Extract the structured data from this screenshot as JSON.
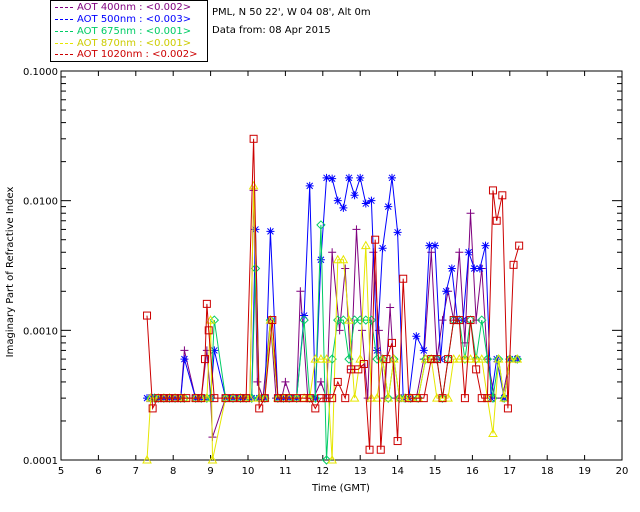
{
  "legend": [
    {
      "label": "AOT  400nm : <0.002>",
      "color": "#7f007f"
    },
    {
      "label": "AOT  500nm : <0.003>",
      "color": "#0000ff"
    },
    {
      "label": "AOT  675nm : <0.001>",
      "color": "#00cc66"
    },
    {
      "label": "AOT  870nm : <0.001>",
      "color": "#e6e600"
    },
    {
      "label": "AOT 1020nm : <0.002>",
      "color": "#cc0000"
    }
  ],
  "meta": {
    "site": "PML, N 50 22', W 04 08', Alt 0m",
    "date": "Data from: 08 Apr 2015"
  },
  "chart_data": {
    "type": "line",
    "title": "",
    "xlabel": "Time (GMT)",
    "ylabel": "Imaginary Part of Refractive Index",
    "xlim": [
      5,
      20
    ],
    "ylim": [
      0.0001,
      0.1
    ],
    "yscale": "log",
    "x_ticks": [
      "5",
      "6",
      "7",
      "8",
      "9",
      "10",
      "11",
      "12",
      "13",
      "14",
      "15",
      "16",
      "17",
      "18",
      "19",
      "20"
    ],
    "y_ticks": [
      "0.0001",
      "0.0010",
      "0.0100",
      "0.1000"
    ],
    "series": [
      {
        "name": "AOT  400nm",
        "marker": "plus",
        "x": [
          7.35,
          7.45,
          7.6,
          7.75,
          7.9,
          8.05,
          8.2,
          8.3,
          8.6,
          8.75,
          8.9,
          9.0,
          9.05,
          9.4,
          9.6,
          9.8,
          9.95,
          10.05,
          10.15,
          10.25,
          10.4,
          10.6,
          10.75,
          10.9,
          11.0,
          11.15,
          11.3,
          11.4,
          11.6,
          11.75,
          11.95,
          12.1,
          12.25,
          12.45,
          12.6,
          12.75,
          12.9,
          13.05,
          13.2,
          13.35,
          13.5,
          13.65,
          13.8,
          13.95,
          14.1,
          14.3,
          14.5,
          14.7,
          14.9,
          15.05,
          15.2,
          15.35,
          15.5,
          15.65,
          15.8,
          15.95,
          16.1,
          16.25,
          16.4,
          16.6,
          16.8,
          17.0,
          17.15
        ],
        "values": [
          0.0003,
          0.0003,
          0.0003,
          0.0003,
          0.0003,
          0.0003,
          0.0003,
          0.0007,
          0.0003,
          0.0003,
          0.0007,
          0.0003,
          0.00015,
          0.0003,
          0.0003,
          0.0003,
          0.0003,
          0.0003,
          0.012,
          0.0004,
          0.0003,
          0.0012,
          0.0003,
          0.0003,
          0.0004,
          0.0003,
          0.0003,
          0.002,
          0.0003,
          0.0003,
          0.0004,
          0.0003,
          0.004,
          0.001,
          0.003,
          0.0005,
          0.006,
          0.001,
          0.0003,
          0.004,
          0.001,
          0.0003,
          0.0015,
          0.0003,
          0.0003,
          0.0003,
          0.0003,
          0.0006,
          0.004,
          0.0006,
          0.0012,
          0.002,
          0.0012,
          0.004,
          0.0008,
          0.008,
          0.0012,
          0.003,
          0.0006,
          0.0003,
          0.0003,
          0.0006,
          0.0006
        ]
      },
      {
        "name": "AOT  500nm",
        "marker": "star",
        "x": [
          7.3,
          7.45,
          7.6,
          7.75,
          7.9,
          8.05,
          8.2,
          8.3,
          8.6,
          8.75,
          8.9,
          9.0,
          9.1,
          9.4,
          9.6,
          9.8,
          9.95,
          10.1,
          10.2,
          10.3,
          10.45,
          10.6,
          10.8,
          10.95,
          11.1,
          11.3,
          11.5,
          11.65,
          11.8,
          11.95,
          12.1,
          12.25,
          12.4,
          12.55,
          12.7,
          12.85,
          13.0,
          13.15,
          13.3,
          13.45,
          13.6,
          13.75,
          13.85,
          14.0,
          14.15,
          14.3,
          14.5,
          14.7,
          14.85,
          15.0,
          15.15,
          15.3,
          15.45,
          15.6,
          15.75,
          15.9,
          16.05,
          16.2,
          16.35,
          16.5,
          16.65,
          16.85,
          17.0,
          17.2
        ],
        "values": [
          0.0003,
          0.0003,
          0.0003,
          0.0003,
          0.0003,
          0.0003,
          0.0003,
          0.0006,
          0.0003,
          0.0003,
          0.0003,
          0.0003,
          0.0007,
          0.0003,
          0.0003,
          0.0003,
          0.0003,
          0.0003,
          0.006,
          0.0003,
          0.0003,
          0.0058,
          0.0003,
          0.0003,
          0.0003,
          0.0003,
          0.0013,
          0.013,
          0.0003,
          0.0035,
          0.015,
          0.0148,
          0.01,
          0.0088,
          0.015,
          0.011,
          0.015,
          0.0095,
          0.01,
          0.0007,
          0.0043,
          0.009,
          0.015,
          0.0057,
          0.0003,
          0.0003,
          0.0009,
          0.0007,
          0.0045,
          0.0045,
          0.0006,
          0.002,
          0.003,
          0.0012,
          0.0012,
          0.004,
          0.003,
          0.003,
          0.0045,
          0.0003,
          0.0006,
          0.0003,
          0.0006,
          0.0006
        ]
      },
      {
        "name": "AOT  675nm",
        "marker": "diamond",
        "x": [
          7.4,
          7.5,
          7.6,
          7.75,
          7.9,
          8.05,
          8.2,
          8.3,
          8.6,
          8.75,
          8.9,
          9.0,
          9.1,
          9.4,
          9.6,
          9.8,
          9.95,
          10.1,
          10.2,
          10.3,
          10.45,
          10.6,
          10.8,
          10.95,
          11.1,
          11.3,
          11.5,
          11.65,
          11.8,
          11.95,
          12.1,
          12.25,
          12.4,
          12.55,
          12.7,
          12.85,
          13.0,
          13.15,
          13.3,
          13.45,
          13.6,
          13.75,
          13.9,
          14.05,
          14.2,
          14.35,
          14.55,
          14.75,
          14.9,
          15.05,
          15.2,
          15.35,
          15.5,
          15.65,
          15.8,
          15.95,
          16.1,
          16.25,
          16.4,
          16.55,
          16.7,
          16.85,
          17.0,
          17.2
        ],
        "values": [
          0.0003,
          0.0003,
          0.0003,
          0.0003,
          0.0003,
          0.0003,
          0.0003,
          0.0003,
          0.0003,
          0.0003,
          0.0003,
          0.0003,
          0.0012,
          0.0003,
          0.0003,
          0.0003,
          0.0003,
          0.0003,
          0.003,
          0.0003,
          0.0003,
          0.0012,
          0.0003,
          0.0003,
          0.0003,
          0.0003,
          0.0012,
          0.0003,
          0.0003,
          0.0065,
          0.0001,
          0.0006,
          0.0012,
          0.0012,
          0.0006,
          0.0012,
          0.0012,
          0.0012,
          0.0012,
          0.0006,
          0.0006,
          0.0003,
          0.0006,
          0.0003,
          0.0003,
          0.0003,
          0.0003,
          0.0006,
          0.0006,
          0.0006,
          0.0003,
          0.0006,
          0.0012,
          0.0012,
          0.0006,
          0.0012,
          0.0006,
          0.0012,
          0.0006,
          0.0003,
          0.0006,
          0.0003,
          0.0006,
          0.0006
        ]
      },
      {
        "name": "AOT  870nm",
        "marker": "triangle",
        "x": [
          7.3,
          7.4,
          7.6,
          7.75,
          7.9,
          8.05,
          8.2,
          8.3,
          8.6,
          8.75,
          8.9,
          9.0,
          9.05,
          9.4,
          9.6,
          9.8,
          9.95,
          10.05,
          10.15,
          10.3,
          10.45,
          10.6,
          10.8,
          10.95,
          11.1,
          11.3,
          11.5,
          11.65,
          11.8,
          11.95,
          12.1,
          12.25,
          12.4,
          12.55,
          12.7,
          12.85,
          13.0,
          13.15,
          13.3,
          13.45,
          13.6,
          13.75,
          13.9,
          14.05,
          14.2,
          14.35,
          14.55,
          14.75,
          14.9,
          15.05,
          15.2,
          15.35,
          15.5,
          15.65,
          15.8,
          15.95,
          16.1,
          16.25,
          16.4,
          16.55,
          16.7,
          16.85,
          17.0,
          17.2
        ],
        "values": [
          0.0001,
          0.0003,
          0.0003,
          0.0003,
          0.0003,
          0.0003,
          0.0003,
          0.0003,
          0.0003,
          0.0003,
          0.0003,
          0.0012,
          0.0001,
          0.0003,
          0.0003,
          0.0003,
          0.0003,
          0.0003,
          0.013,
          0.0003,
          0.0003,
          0.0012,
          0.0003,
          0.0003,
          0.0003,
          0.0003,
          0.0003,
          0.0003,
          0.0006,
          0.0006,
          0.0006,
          0.0001,
          0.0035,
          0.0035,
          0.0012,
          0.0003,
          0.0006,
          0.0045,
          0.0003,
          0.0003,
          0.0006,
          0.0003,
          0.0006,
          0.0003,
          0.0003,
          0.0003,
          0.0003,
          0.0006,
          0.0006,
          0.0003,
          0.0003,
          0.0003,
          0.0006,
          0.0006,
          0.0006,
          0.0006,
          0.0006,
          0.0006,
          0.0003,
          0.00016,
          0.0006,
          0.0003,
          0.0006,
          0.0006
        ]
      },
      {
        "name": "AOT 1020nm",
        "marker": "square",
        "x": [
          7.3,
          7.45,
          7.6,
          7.75,
          7.9,
          8.05,
          8.2,
          8.35,
          8.6,
          8.75,
          8.85,
          8.9,
          8.95,
          9.1,
          9.4,
          9.6,
          9.8,
          9.95,
          10.15,
          10.3,
          10.45,
          10.65,
          10.8,
          10.95,
          11.1,
          11.3,
          11.5,
          11.65,
          11.8,
          11.95,
          12.1,
          12.25,
          12.4,
          12.6,
          12.75,
          12.95,
          13.1,
          13.25,
          13.4,
          13.55,
          13.7,
          13.85,
          14.0,
          14.15,
          14.3,
          14.5,
          14.7,
          14.9,
          15.05,
          15.2,
          15.35,
          15.5,
          15.65,
          15.8,
          15.95,
          16.1,
          16.25,
          16.4,
          16.55,
          16.65,
          16.8,
          16.95,
          17.1,
          17.25
        ],
        "values": [
          0.0013,
          0.00025,
          0.0003,
          0.0003,
          0.0003,
          0.0003,
          0.0003,
          0.0003,
          0.0003,
          0.0003,
          0.0006,
          0.0016,
          0.001,
          0.0003,
          0.0003,
          0.0003,
          0.0003,
          0.0003,
          0.03,
          0.00025,
          0.0003,
          0.0012,
          0.0003,
          0.0003,
          0.0003,
          0.0003,
          0.0003,
          0.0003,
          0.00025,
          0.0003,
          0.0003,
          0.0003,
          0.0004,
          0.0003,
          0.0005,
          0.0005,
          0.00055,
          0.00012,
          0.005,
          0.00012,
          0.0006,
          0.0008,
          0.00014,
          0.0025,
          0.0003,
          0.0003,
          0.0003,
          0.0006,
          0.0006,
          0.0003,
          0.0006,
          0.0012,
          0.0012,
          0.0003,
          0.0012,
          0.0005,
          0.0003,
          0.0003,
          0.012,
          0.007,
          0.011,
          0.00025,
          0.0032,
          0.0045
        ]
      }
    ]
  }
}
